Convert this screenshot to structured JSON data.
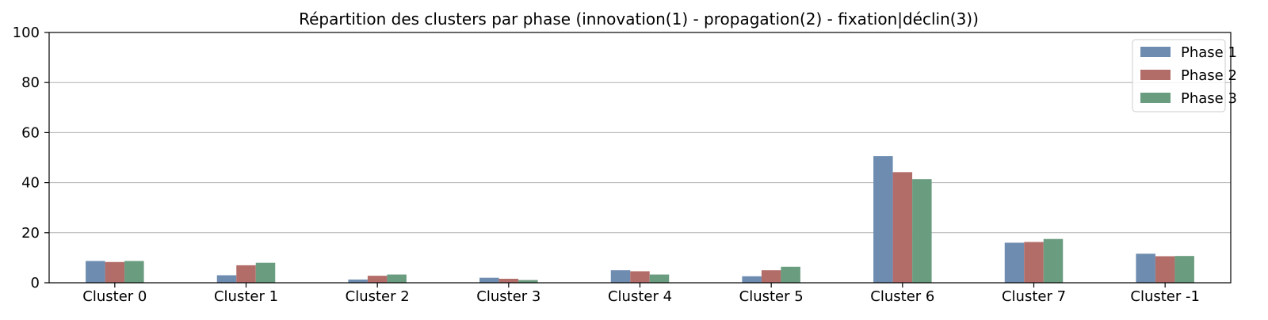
{
  "chart_data": {
    "type": "bar",
    "title": "Répartition des clusters par phase (innovation(1) - propagation(2) - fixation|déclin(3))",
    "xlabel": "",
    "ylabel": "",
    "categories": [
      "Cluster 0",
      "Cluster 1",
      "Cluster 2",
      "Cluster 3",
      "Cluster 4",
      "Cluster 5",
      "Cluster 6",
      "Cluster 7",
      "Cluster -1"
    ],
    "series": [
      {
        "name": "Phase 1",
        "color": "#6d8cb0",
        "values": [
          8.7,
          3.0,
          1.3,
          2.0,
          5.0,
          2.6,
          50.6,
          16.0,
          11.6
        ]
      },
      {
        "name": "Phase 2",
        "color": "#b36d69",
        "values": [
          8.3,
          7.0,
          2.8,
          1.6,
          4.6,
          5.0,
          44.2,
          16.3,
          10.6
        ]
      },
      {
        "name": "Phase 3",
        "color": "#6a9c80",
        "values": [
          8.7,
          8.0,
          3.3,
          1.1,
          3.3,
          6.4,
          41.4,
          17.5,
          10.7
        ]
      }
    ],
    "ylim": [
      0,
      100
    ],
    "yticks": [
      0,
      20,
      40,
      60,
      80,
      100
    ],
    "grid": "horizontal",
    "legend_position": "top-right"
  }
}
